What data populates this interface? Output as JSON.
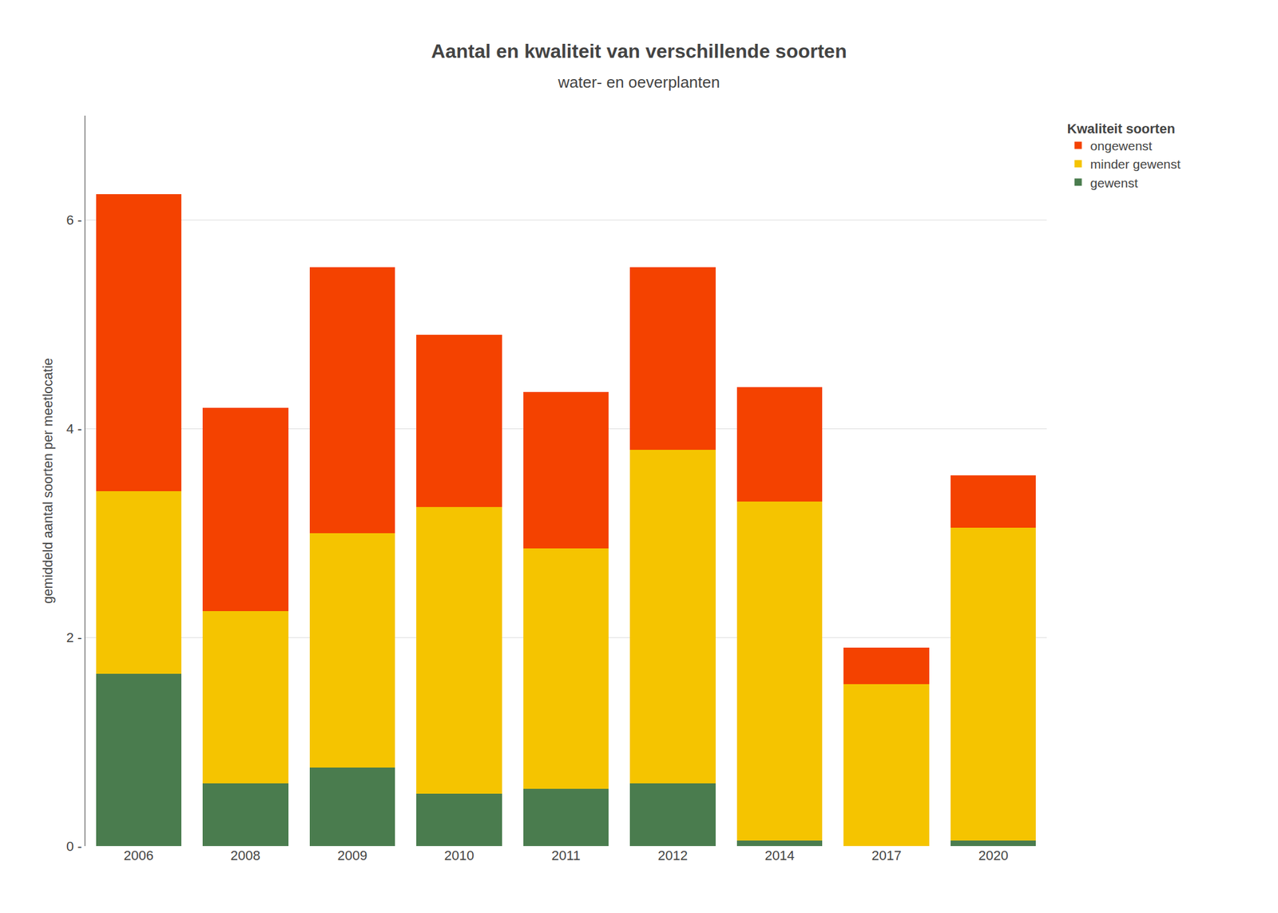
{
  "chart_data": {
    "type": "bar",
    "stacked": true,
    "title": "Aantal en kwaliteit van verschillende soorten",
    "subtitle": "water- en oeverplanten",
    "y_label": "gemiddeld aantal soorten per meetlocatie",
    "categories": [
      "2006",
      "2008",
      "2009",
      "2010",
      "2011",
      "2012",
      "2014",
      "2017",
      "2020"
    ],
    "series": [
      {
        "name": "gewenst",
        "color": "#4a7c4e",
        "values": [
          1.65,
          0.6,
          0.75,
          0.5,
          0.55,
          0.6,
          0.05,
          0.0,
          0.05
        ]
      },
      {
        "name": "minder gewenst",
        "color": "#f5c400",
        "values": [
          1.75,
          1.65,
          2.25,
          2.75,
          2.3,
          3.2,
          3.25,
          1.55,
          3.0
        ]
      },
      {
        "name": "ongewenst",
        "color": "#f44200",
        "values": [
          2.85,
          1.95,
          2.55,
          1.65,
          1.5,
          1.75,
          1.1,
          0.35,
          0.5
        ]
      }
    ],
    "legend_title": "Kwaliteit soorten",
    "legend": "upper right",
    "ylim": [
      0,
      7
    ],
    "yticks": [
      {
        "value": 0,
        "label": "0 -"
      },
      {
        "value": 2,
        "label": "2 -"
      },
      {
        "value": 4,
        "label": "4 -"
      },
      {
        "value": 6,
        "label": "6 -"
      }
    ],
    "grid": true
  }
}
